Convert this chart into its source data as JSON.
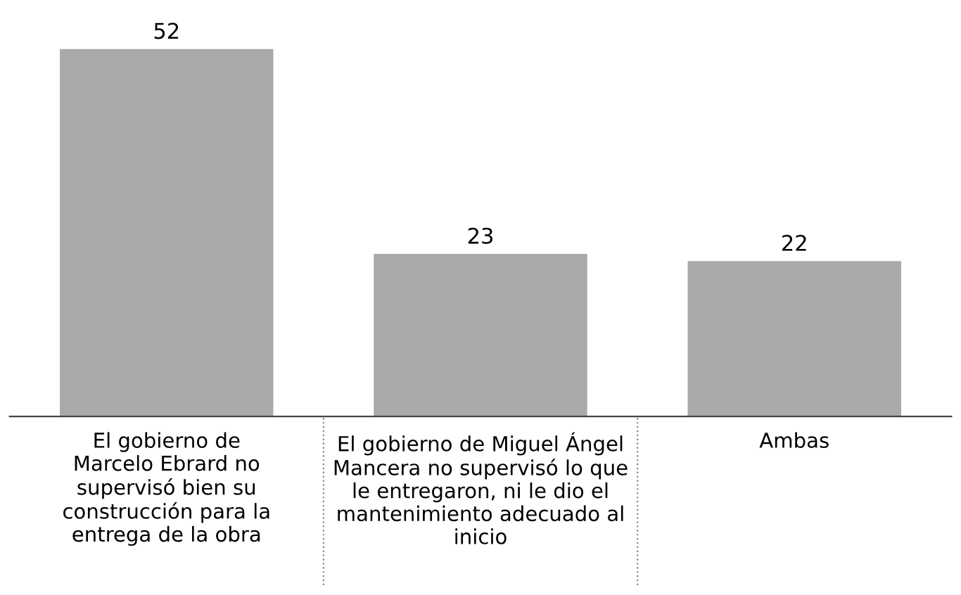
{
  "chart_data": {
    "type": "bar",
    "categories": [
      "El gobierno de\nMarcelo Ebrard no\nsupervisó bien su\nconstrucción para la\nentrega de la obra",
      "El gobierno de Miguel Ángel\nMancera no supervisó lo que\nle entregaron, ni le dio el\nmantenimiento adecuado al\ninicio",
      "Ambas"
    ],
    "values": [
      52,
      23,
      22
    ],
    "color": "#a9a9a9",
    "data_labels": true,
    "grid": false,
    "legend": false
  }
}
